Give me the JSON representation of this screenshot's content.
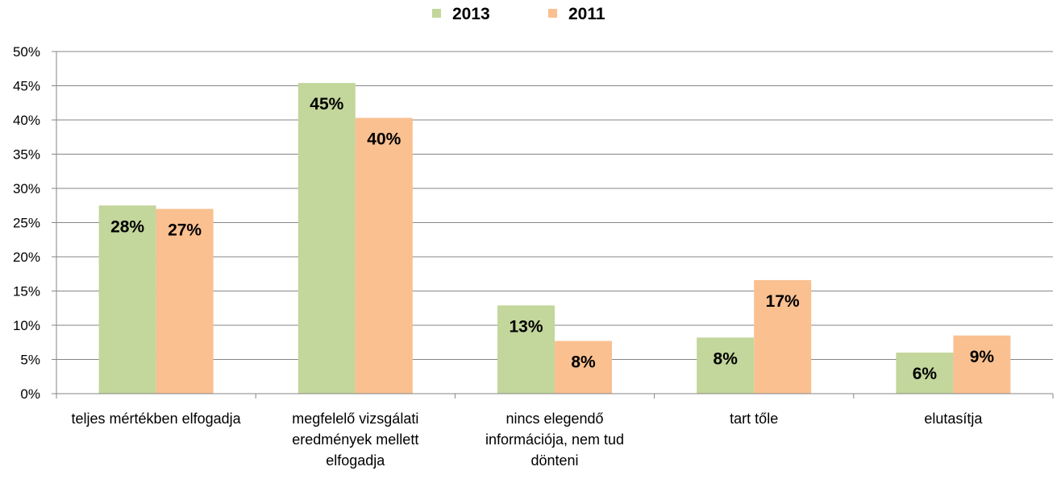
{
  "chart_data": {
    "type": "bar",
    "categories": [
      [
        "teljes mértékben elfogadja"
      ],
      [
        "megfelelő vizsgálati",
        "eredmények mellett",
        "elfogadja"
      ],
      [
        "nincs elegendő",
        "információja, nem tud",
        "dönteni"
      ],
      [
        "tart tőle"
      ],
      [
        "elutasítja"
      ]
    ],
    "series": [
      {
        "name": "2013",
        "color": "#c3d69b",
        "values": [
          27.5,
          45.4,
          12.9,
          8.2,
          6.0
        ],
        "labels": [
          "28%",
          "45%",
          "13%",
          "8%",
          "6%"
        ]
      },
      {
        "name": "2011",
        "color": "#fac090",
        "values": [
          27.0,
          40.3,
          7.7,
          16.6,
          8.5
        ],
        "labels": [
          "27%",
          "40%",
          "8%",
          "17%",
          "9%"
        ]
      }
    ],
    "yticks": [
      "0%",
      "5%",
      "10%",
      "15%",
      "20%",
      "25%",
      "30%",
      "35%",
      "40%",
      "45%",
      "50%"
    ],
    "ylim": [
      0,
      50
    ],
    "grid": true,
    "legend": "top-center"
  }
}
